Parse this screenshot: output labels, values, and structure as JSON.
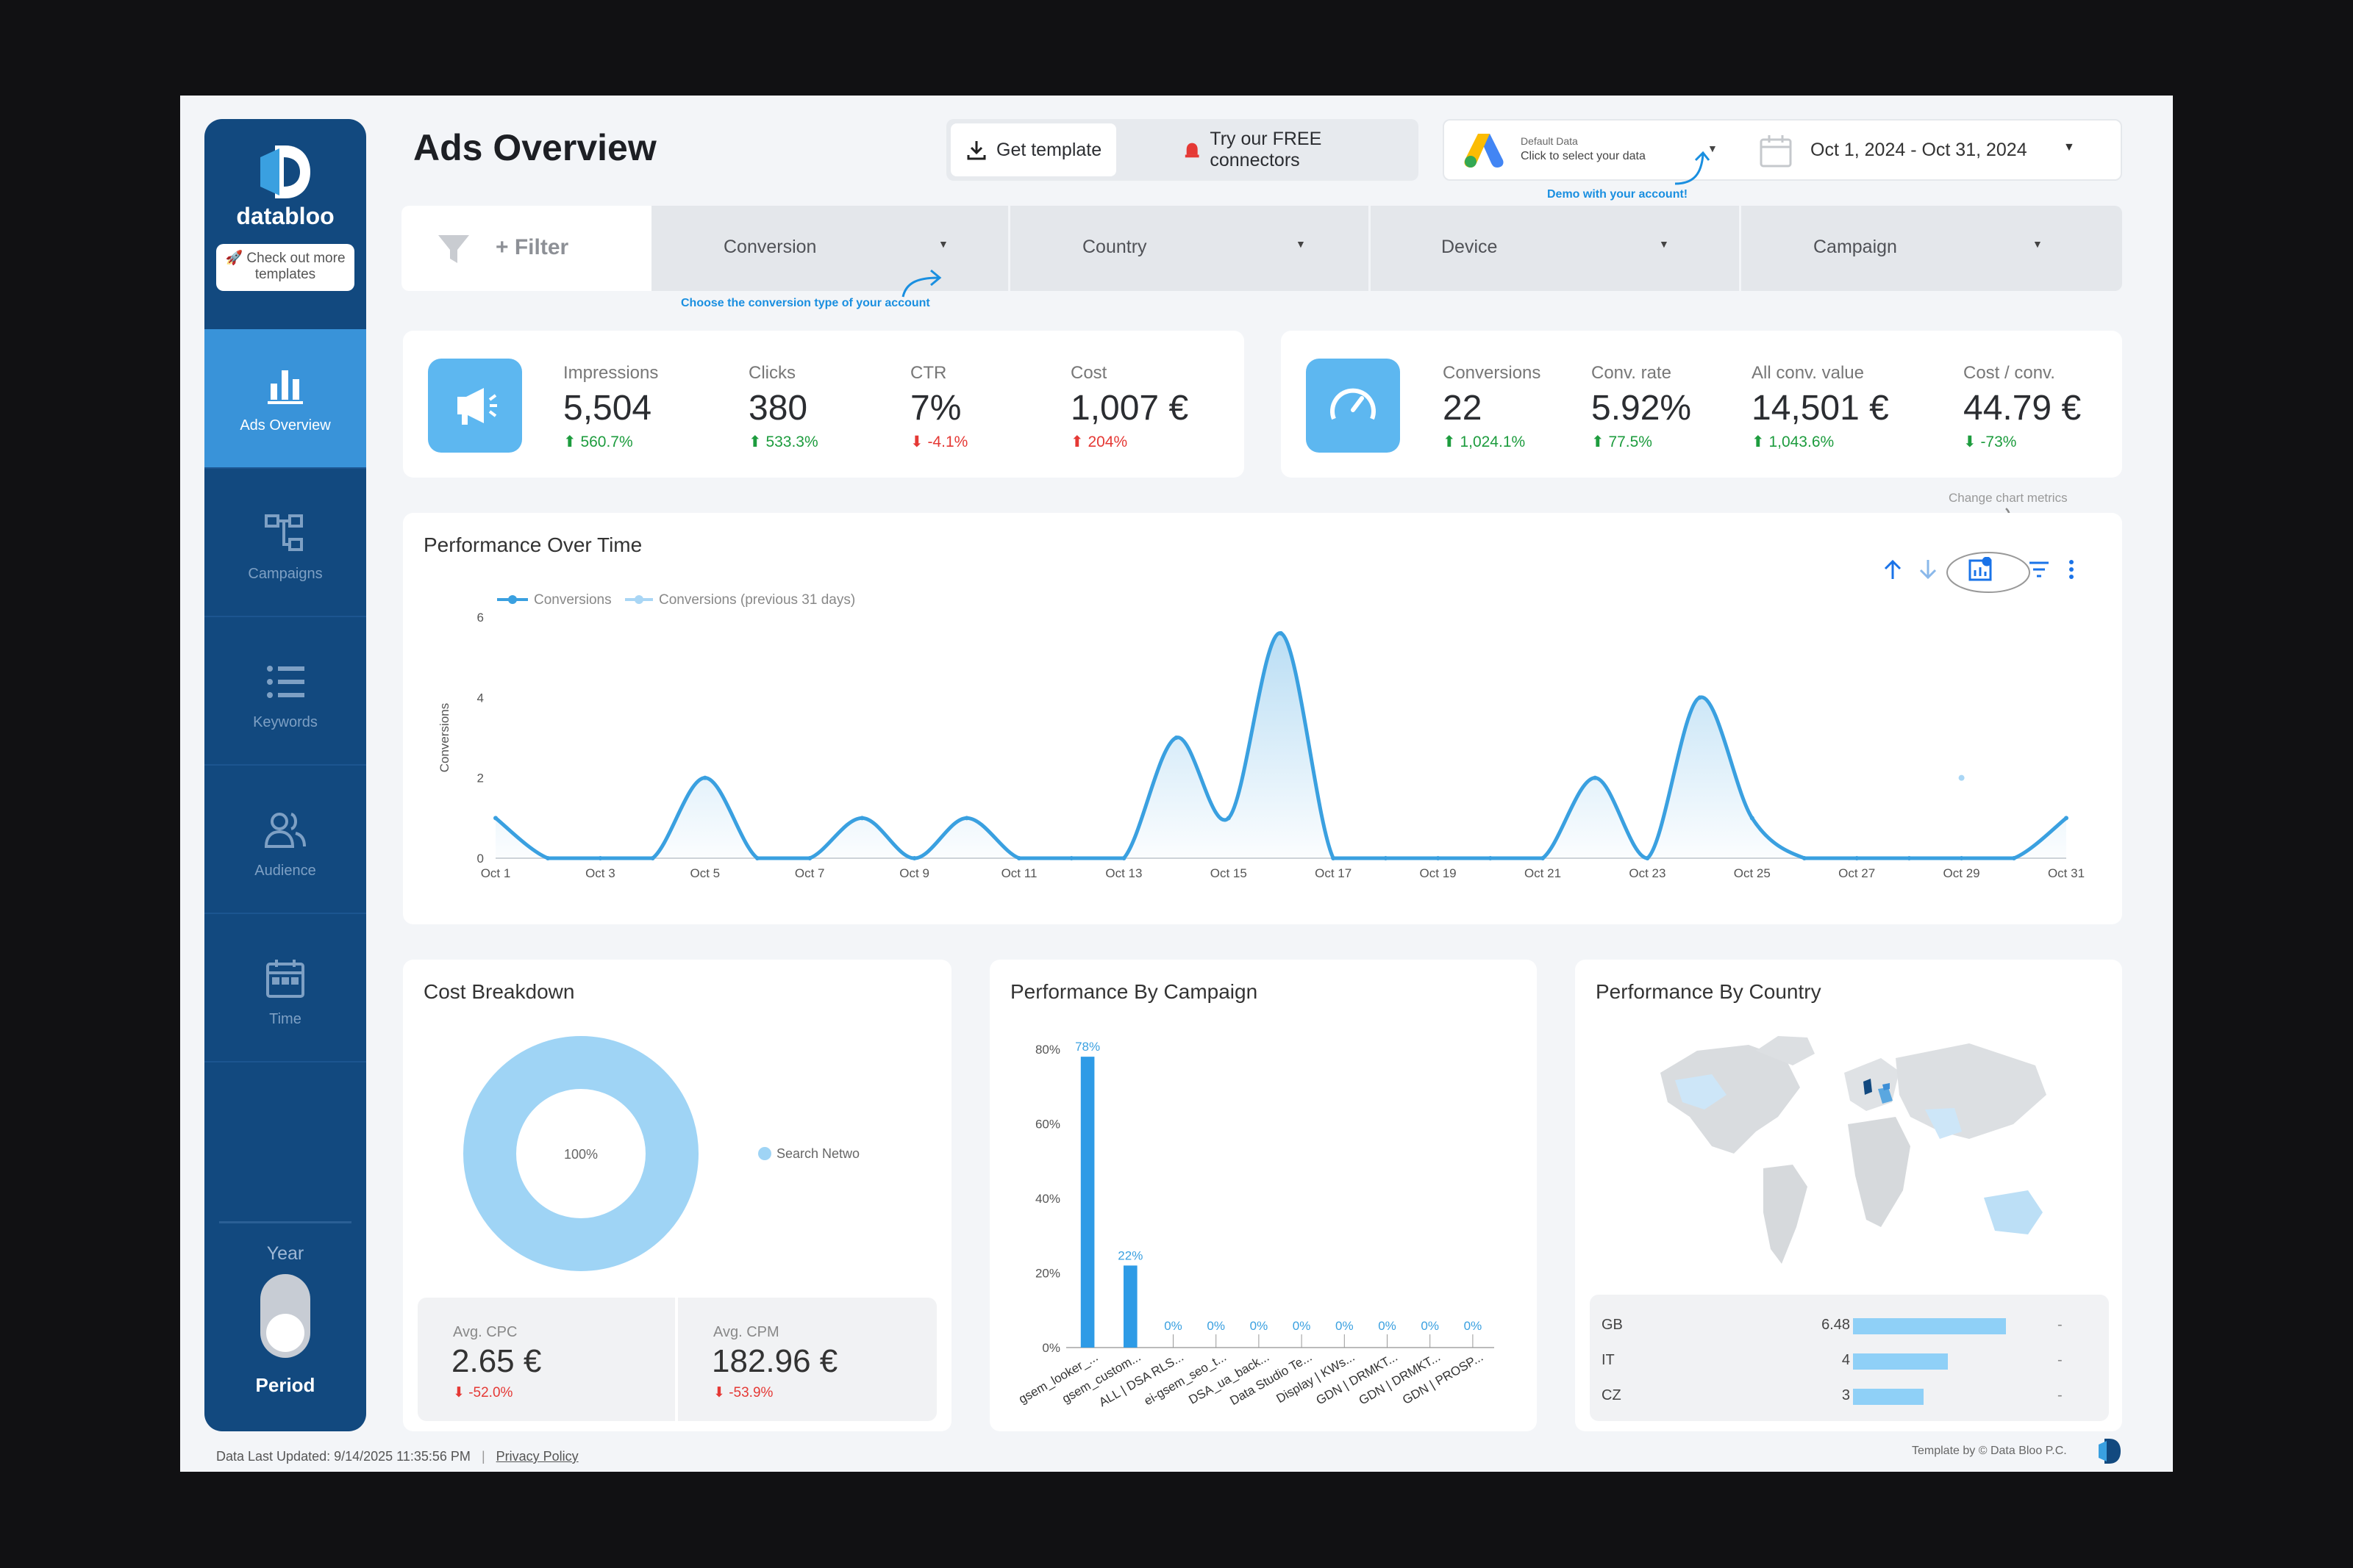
{
  "brand": {
    "name": "databloo",
    "templates_button": "🚀 Check out more templates",
    "accent": "#3993d9",
    "sidebar_bg": "#12497f"
  },
  "sidebar": {
    "items": [
      {
        "label": "Ads Overview",
        "icon": "bar-chart-icon"
      },
      {
        "label": "Campaigns",
        "icon": "hierarchy-icon"
      },
      {
        "label": "Keywords",
        "icon": "list-icon"
      },
      {
        "label": "Audience",
        "icon": "users-icon"
      },
      {
        "label": "Time",
        "icon": "calendar-icon"
      }
    ],
    "year_label": "Year",
    "period_label": "Period"
  },
  "header": {
    "title": "Ads Overview",
    "get_template": "Get template",
    "free_connectors": "Try our FREE connectors",
    "data_source_title": "Default Data",
    "data_source_sub": "Click to select your data",
    "date_range": "Oct 1, 2024 - Oct 31, 2024",
    "demo_note": "Demo with your account!"
  },
  "filters": {
    "add_filter": "+ Filter",
    "dropdowns": [
      "Conversion",
      "Country",
      "Device",
      "Campaign"
    ],
    "conversion_note": "Choose the conversion type of your account"
  },
  "kpis_left": [
    {
      "label": "Impressions",
      "value": "5,504",
      "delta": "560.7%",
      "dir": "up"
    },
    {
      "label": "Clicks",
      "value": "380",
      "delta": "533.3%",
      "dir": "up"
    },
    {
      "label": "CTR",
      "value": "7%",
      "delta": "-4.1%",
      "dir": "down"
    },
    {
      "label": "Cost",
      "value": "1,007 €",
      "delta": "204%",
      "dir": "up-red"
    }
  ],
  "kpis_right": [
    {
      "label": "Conversions",
      "value": "22",
      "delta": "1,024.1%",
      "dir": "up"
    },
    {
      "label": "Conv. rate",
      "value": "5.92%",
      "delta": "77.5%",
      "dir": "up"
    },
    {
      "label": "All conv. value",
      "value": "14,501 €",
      "delta": "1,043.6%",
      "dir": "up"
    },
    {
      "label": "Cost / conv.",
      "value": "44.79 €",
      "delta": "-73%",
      "dir": "down-green"
    }
  ],
  "performance_over_time": {
    "title": "Performance Over Time",
    "change_metrics_note": "Change chart metrics"
  },
  "cost_breakdown": {
    "title": "Cost Breakdown",
    "avg_cpc_label": "Avg. CPC",
    "avg_cpc_value": "2.65 €",
    "avg_cpc_delta": "-52.0%",
    "avg_cpm_label": "Avg. CPM",
    "avg_cpm_value": "182.96 €",
    "avg_cpm_delta": "-53.9%"
  },
  "campaign_panel": {
    "title": "Performance By Campaign"
  },
  "country_panel": {
    "title": "Performance By Country",
    "rows": [
      {
        "country": "GB",
        "value": "6.48",
        "fraction": 1.0,
        "change": "-"
      },
      {
        "country": "IT",
        "value": "4",
        "fraction": 0.62,
        "change": "-"
      },
      {
        "country": "CZ",
        "value": "3",
        "fraction": 0.46,
        "change": "-"
      }
    ]
  },
  "footer": {
    "last_updated": "Data Last Updated: 9/14/2025 11:35:56 PM",
    "privacy": "Privacy Policy",
    "credit": "Template by © Data Bloo P.C."
  },
  "chart_data": [
    {
      "type": "line",
      "title": "Performance Over Time",
      "xlabel": "",
      "ylabel": "Conversions",
      "ylim": [
        0,
        6
      ],
      "yticks": [
        "0",
        "2",
        "4",
        "6"
      ],
      "x": [
        "Oct 1",
        "Oct 2",
        "Oct 3",
        "Oct 4",
        "Oct 5",
        "Oct 6",
        "Oct 7",
        "Oct 8",
        "Oct 9",
        "Oct 10",
        "Oct 11",
        "Oct 12",
        "Oct 13",
        "Oct 14",
        "Oct 15",
        "Oct 16",
        "Oct 17",
        "Oct 18",
        "Oct 19",
        "Oct 20",
        "Oct 21",
        "Oct 22",
        "Oct 23",
        "Oct 24",
        "Oct 25",
        "Oct 26",
        "Oct 27",
        "Oct 28",
        "Oct 29",
        "Oct 30",
        "Oct 31"
      ],
      "xtick_labels": [
        "Oct 1",
        "Oct 3",
        "Oct 5",
        "Oct 7",
        "Oct 9",
        "Oct 11",
        "Oct 13",
        "Oct 15",
        "Oct 17",
        "Oct 19",
        "Oct 21",
        "Oct 23",
        "Oct 25",
        "Oct 27",
        "Oct 29",
        "Oct 31"
      ],
      "series": [
        {
          "name": "Conversions",
          "color": "#3aa0e0",
          "values": [
            1,
            0,
            0,
            0,
            2,
            0,
            0,
            1,
            0,
            1,
            0,
            0,
            0,
            3,
            1,
            5.6,
            0,
            0,
            0,
            0,
            0,
            2,
            0,
            4,
            1,
            0,
            0,
            0,
            0,
            0,
            1
          ]
        },
        {
          "name": "Conversions (previous 31 days)",
          "color": "#a9d6f5",
          "values": [
            null,
            null,
            null,
            null,
            null,
            null,
            null,
            null,
            null,
            null,
            null,
            null,
            null,
            null,
            null,
            null,
            null,
            null,
            null,
            null,
            null,
            null,
            null,
            null,
            null,
            null,
            null,
            null,
            null,
            null,
            null
          ],
          "points": [
            {
              "x": "Oct 29",
              "y": 2
            }
          ]
        }
      ],
      "legend": "top-left"
    },
    {
      "type": "pie",
      "title": "Cost Breakdown",
      "slices": [
        {
          "label": "Search Netwo",
          "value": 100,
          "display": "100%"
        }
      ],
      "color": "#9fd4f5",
      "legend": "right"
    },
    {
      "type": "bar",
      "title": "Performance By Campaign",
      "categories": [
        "gsem_looker_...",
        "gsem_custom...",
        "ALL | DSA RLS...",
        "ei-gsem_seo_t...",
        "DSA_ua_back...",
        "Data Studio Te...",
        "Display | KWs...",
        "GDN | DRMKT...",
        "GDN | DRMKT...",
        "GDN | PROSP..."
      ],
      "values": [
        78,
        22,
        0,
        0,
        0,
        0,
        0,
        0,
        0,
        0
      ],
      "value_labels": [
        "78%",
        "22%",
        "0%",
        "0%",
        "0%",
        "0%",
        "0%",
        "0%",
        "0%",
        "0%"
      ],
      "ylim": [
        0,
        80
      ],
      "yticks": [
        "0%",
        "20%",
        "40%",
        "60%",
        "80%"
      ],
      "color": "#2e9be6"
    }
  ]
}
